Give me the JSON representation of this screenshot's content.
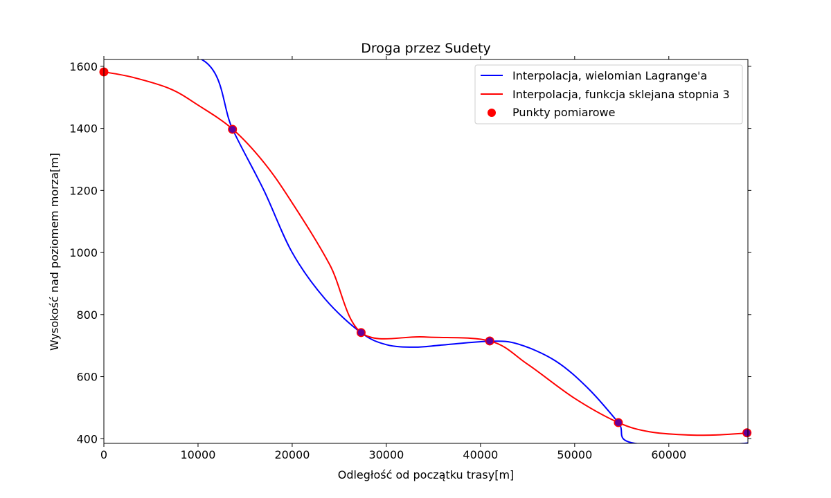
{
  "chart_data": {
    "type": "line",
    "title": "Droga przez Sudety",
    "xlabel": "Odległość od początku trasy[m]",
    "ylabel": "Wysokość nad poziomem morza[m]",
    "xlim": [
      0,
      68400
    ],
    "ylim": [
      385,
      1622
    ],
    "xticks": [
      0,
      10000,
      20000,
      30000,
      40000,
      50000,
      60000
    ],
    "yticks": [
      400,
      600,
      800,
      1000,
      1200,
      1400,
      1600
    ],
    "grid": false,
    "legend_position": "top-right",
    "series": [
      {
        "name": "Interpolacja, wielomian Lagrange'a",
        "color": "#0000ff",
        "x": [
          0,
          10500,
          13660,
          17000,
          20000,
          23500,
          27300,
          30000,
          33000,
          36000,
          40980,
          44000,
          48000,
          51500,
          54640,
          56400,
          68040,
          68300
        ],
        "y": [
          1650,
          1620,
          1398,
          1200,
          1000,
          850,
          742,
          703,
          695,
          702,
          714,
          705,
          650,
          560,
          452,
          385,
          385,
          415
        ]
      },
      {
        "name": "Interpolacja, funkcja sklejana stopnia 3",
        "color": "#ff0000",
        "x": [
          0,
          3000,
          7000,
          10000,
          13660,
          17000,
          20000,
          24000,
          27320,
          34000,
          40980,
          45000,
          50000,
          54640,
          58000,
          62000,
          65000,
          68300
        ],
        "y": [
          1582,
          1565,
          1528,
          1475,
          1398,
          1290,
          1160,
          960,
          742,
          728,
          715,
          640,
          530,
          452,
          422,
          412,
          412,
          418
        ]
      },
      {
        "name": "Punkty pomiarowe",
        "type": "scatter",
        "color": "#ff0000",
        "x": [
          0,
          13660,
          27320,
          40980,
          54640,
          68300
        ],
        "y": [
          1582,
          1397,
          742,
          715,
          452,
          419
        ]
      }
    ]
  }
}
